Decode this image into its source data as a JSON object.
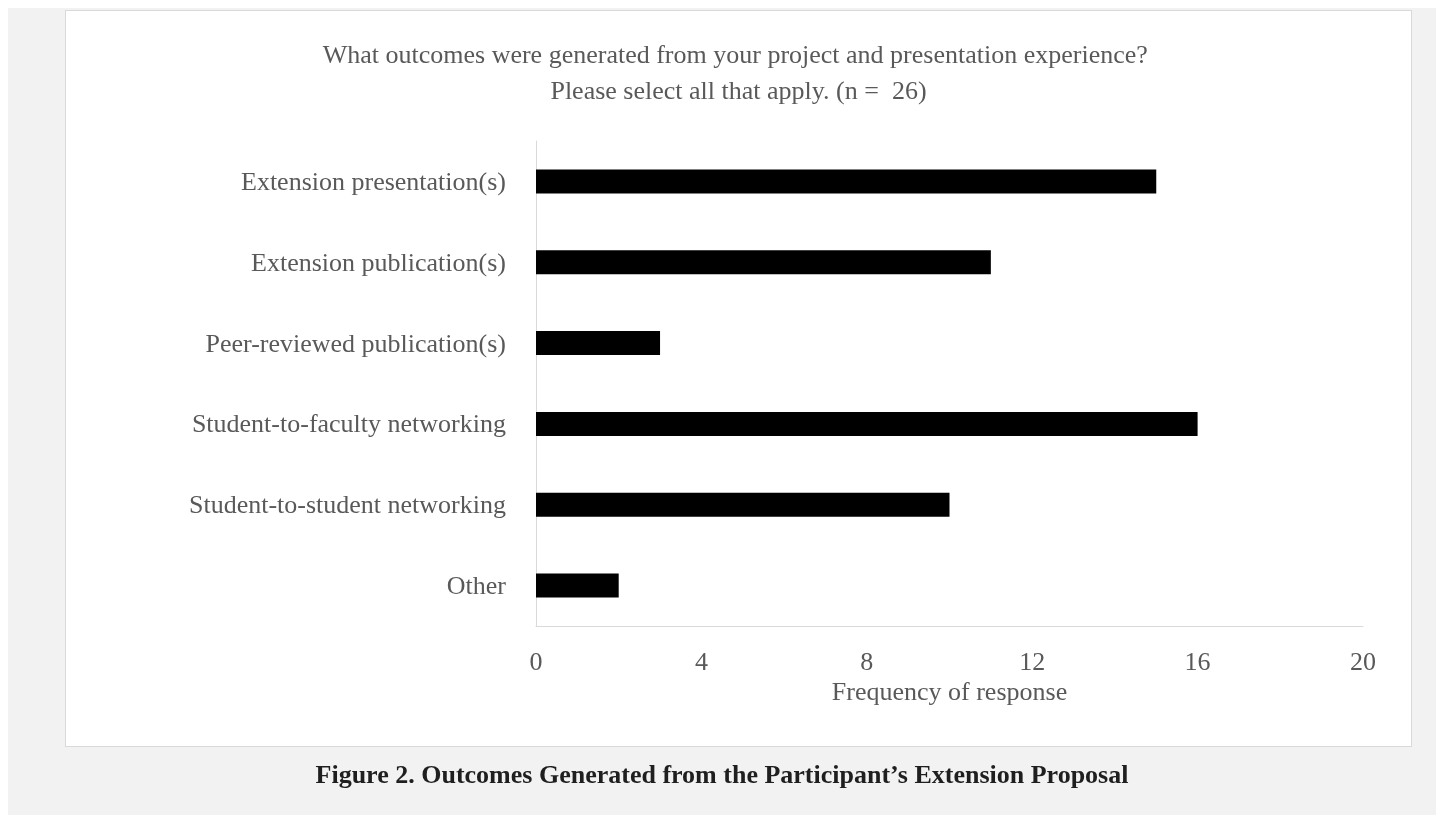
{
  "chart_data": {
    "type": "bar",
    "orientation": "horizontal",
    "title": "What outcomes were generated from your project and presentation experience? Please select all that apply. (n =  26)",
    "xlabel": "Frequency of response",
    "categories": [
      "Extension presentation(s)",
      "Extension publication(s)",
      "Peer-reviewed publication(s)",
      "Student-to-faculty networking",
      "Student-to-student networking",
      "Other"
    ],
    "values": [
      15,
      11,
      3,
      16,
      10,
      2
    ],
    "color": "#000000",
    "xlim": [
      0,
      20
    ],
    "xticks": [
      0,
      4,
      8,
      12,
      16,
      20
    ],
    "grid": false,
    "annotations": [
      "Figure 2. Outcomes Generated from the Participant’s Extension Proposal"
    ]
  }
}
